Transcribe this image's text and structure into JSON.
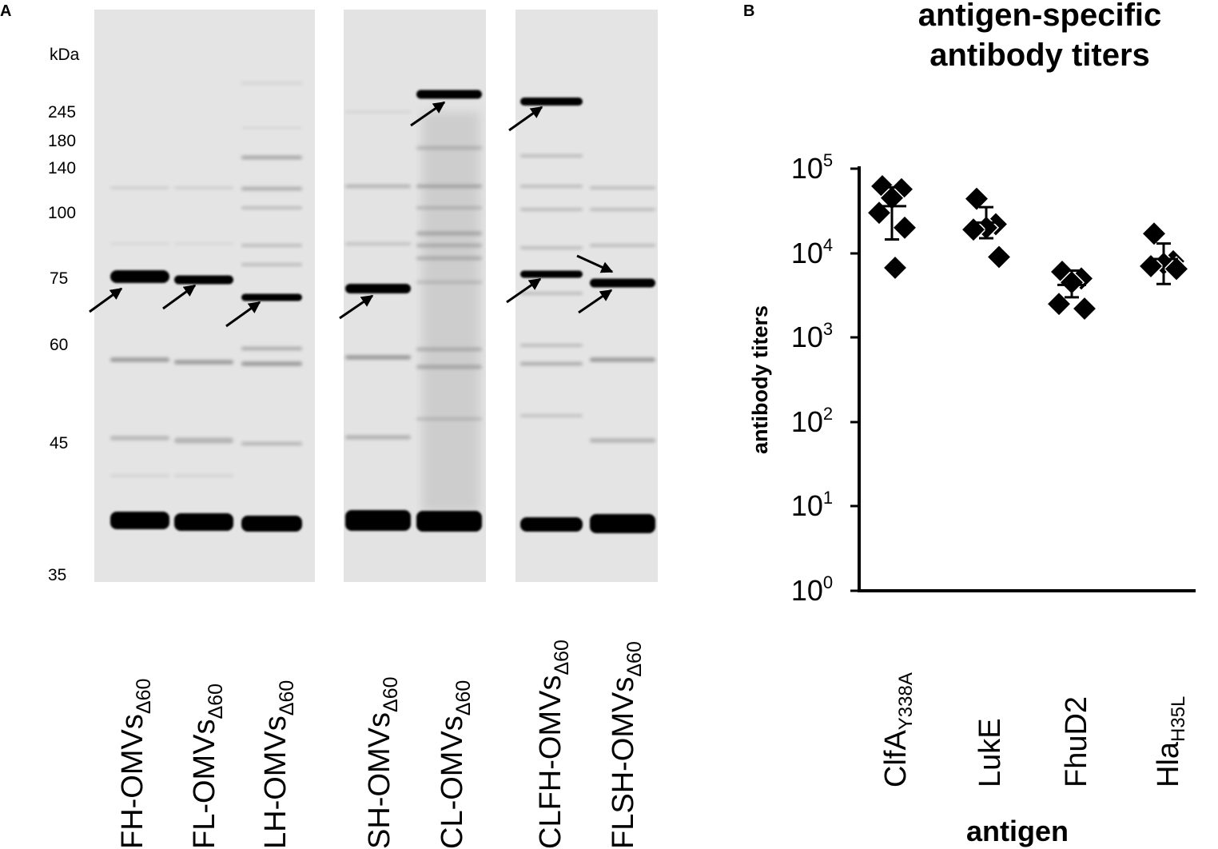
{
  "panel_a": {
    "letter": "A",
    "mw_unit": "kDa",
    "mw_markers": [
      "245",
      "180",
      "140",
      "100",
      "75",
      "60",
      "45",
      "35"
    ],
    "lanes": [
      {
        "main": "FH-OMVs",
        "sub": "Δ60"
      },
      {
        "main": "FL-OMVs",
        "sub": "Δ60"
      },
      {
        "main": "LH-OMVs",
        "sub": "Δ60"
      },
      {
        "main": "SH-OMVs",
        "sub": "Δ60"
      },
      {
        "main": "CL-OMVs",
        "sub": "Δ60"
      },
      {
        "main": "CLFH-OMVs",
        "sub": "Δ60"
      },
      {
        "main": "FLSH-OMVs",
        "sub": "Δ60"
      }
    ]
  },
  "panel_b": {
    "letter": "B",
    "title_line1": "antigen-specific",
    "title_line2": "antibody titers",
    "ylabel": "antibody titers",
    "xlabel": "antigen",
    "y_ticks": [
      {
        "base": "10",
        "exp": "5"
      },
      {
        "base": "10",
        "exp": "4"
      },
      {
        "base": "10",
        "exp": "3"
      },
      {
        "base": "10",
        "exp": "2"
      },
      {
        "base": "10",
        "exp": "1"
      },
      {
        "base": "10",
        "exp": "0"
      }
    ],
    "categories": [
      {
        "main": "ClfA",
        "sub": "Y338A"
      },
      {
        "main": "LukE",
        "sub": ""
      },
      {
        "main": "FhuD2",
        "sub": ""
      },
      {
        "main": "Hla",
        "sub": "H35L"
      }
    ]
  },
  "chart_data": {
    "type": "scatter",
    "title": "antigen-specific antibody titers",
    "xlabel": "antigen",
    "ylabel": "antibody titers",
    "yscale": "log",
    "ylim": [
      1,
      100000
    ],
    "categories": [
      "ClfAY338A",
      "LukE",
      "FhuD2",
      "HlaH35L"
    ],
    "points": [
      [
        62000,
        57000,
        45000,
        30000,
        20000,
        6700
      ],
      [
        44000,
        22000,
        20000,
        19000,
        9000
      ],
      [
        6000,
        5000,
        4500,
        2500,
        2200
      ],
      [
        17000,
        8000,
        7500,
        7000,
        6500
      ]
    ],
    "mean": [
      36000,
      23000,
      4200,
      8500
    ],
    "error_low": [
      14500,
      15000,
      3000,
      4300
    ],
    "error_high": [
      60000,
      35000,
      6200,
      13000
    ],
    "marker": "diamond",
    "marker_color": "#000000"
  }
}
